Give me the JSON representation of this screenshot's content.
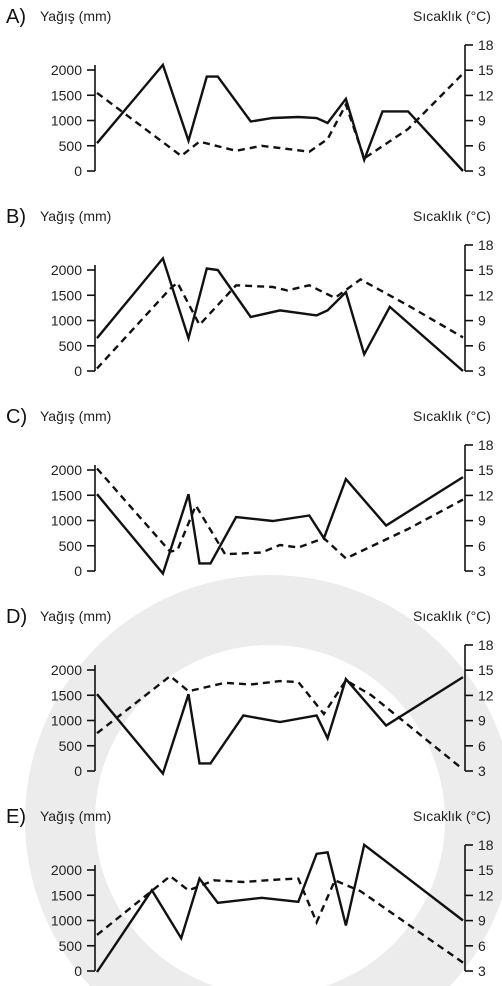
{
  "chart_data": [
    {
      "type": "line",
      "panel": "A)",
      "ylabel": "Yağış (mm)",
      "y2label": "Sıcaklık (",
      "y2unit": "°C)",
      "ylim": [
        0,
        2000
      ],
      "yticks": [
        0,
        500,
        1000,
        1500,
        2000
      ],
      "y2lim": [
        3,
        18
      ],
      "y2ticks": [
        3,
        6,
        9,
        12,
        15,
        18
      ],
      "series": [
        {
          "axis": "left",
          "style": "solid",
          "x": [
            0,
            0.18,
            0.25,
            0.3,
            0.33,
            0.42,
            0.48,
            0.55,
            0.6,
            0.63,
            0.68,
            0.73,
            0.78,
            0.85,
            1
          ],
          "values": [
            550,
            2100,
            600,
            1870,
            1870,
            980,
            1050,
            1070,
            1050,
            950,
            1430,
            220,
            1180,
            1180,
            0
          ]
        },
        {
          "axis": "right",
          "style": "dashed",
          "x": [
            0,
            0.23,
            0.28,
            0.38,
            0.45,
            0.58,
            0.63,
            0.68,
            0.73,
            0.85,
            1
          ],
          "values": [
            12.3,
            4.8,
            6.5,
            5.4,
            6.0,
            5.3,
            6.8,
            10.9,
            4.5,
            8.0,
            14.6
          ]
        }
      ]
    },
    {
      "type": "line",
      "panel": "B)",
      "ylabel": "Yağış (mm)",
      "y2label": "Sıcaklık (",
      "y2unit": "°C)",
      "ylim": [
        0,
        2000
      ],
      "yticks": [
        0,
        500,
        1000,
        1500,
        2000
      ],
      "y2lim": [
        3,
        18
      ],
      "y2ticks": [
        3,
        6,
        9,
        12,
        15,
        18
      ],
      "series": [
        {
          "axis": "left",
          "style": "solid",
          "x": [
            0,
            0.18,
            0.25,
            0.3,
            0.33,
            0.42,
            0.5,
            0.6,
            0.63,
            0.68,
            0.73,
            0.8,
            1
          ],
          "values": [
            650,
            2230,
            650,
            2030,
            2000,
            1070,
            1200,
            1100,
            1200,
            1560,
            330,
            1270,
            0
          ]
        },
        {
          "axis": "right",
          "style": "dashed",
          "x": [
            0,
            0.2,
            0.22,
            0.28,
            0.38,
            0.48,
            0.52,
            0.58,
            0.65,
            0.72,
            0.85,
            1
          ],
          "values": [
            3.3,
            12.8,
            13.5,
            8.5,
            13.2,
            13.0,
            12.6,
            13.2,
            11.7,
            13.9,
            10.8,
            7.0
          ]
        }
      ]
    },
    {
      "type": "line",
      "panel": "C)",
      "ylabel": "Yağış (mm)",
      "y2label": "Sıcaklık (",
      "y2unit": "°C)",
      "ylim": [
        0,
        2000
      ],
      "yticks": [
        0,
        500,
        1000,
        1500,
        2000
      ],
      "y2lim": [
        3,
        18
      ],
      "y2ticks": [
        3,
        6,
        9,
        12,
        15,
        18
      ],
      "series": [
        {
          "axis": "left",
          "style": "solid",
          "x": [
            0,
            0.18,
            0.25,
            0.28,
            0.31,
            0.38,
            0.48,
            0.58,
            0.62,
            0.68,
            0.79,
            1
          ],
          "values": [
            1520,
            -50,
            1520,
            150,
            150,
            1070,
            990,
            1100,
            650,
            1820,
            900,
            1860
          ]
        },
        {
          "axis": "right",
          "style": "dashed",
          "x": [
            0,
            0.2,
            0.22,
            0.27,
            0.35,
            0.45,
            0.5,
            0.55,
            0.62,
            0.68,
            0.85,
            1
          ],
          "values": [
            15.2,
            5.3,
            5.5,
            10.8,
            5.0,
            5.2,
            6.1,
            5.8,
            6.9,
            4.5,
            8.0,
            11.5
          ]
        }
      ]
    },
    {
      "type": "line",
      "panel": "D)",
      "ylabel": "Yağış (mm)",
      "y2label": "Sıcaklık (",
      "y2unit": "°C)",
      "ylim": [
        0,
        2000
      ],
      "yticks": [
        0,
        500,
        1000,
        1500,
        2000
      ],
      "y2lim": [
        3,
        18
      ],
      "y2ticks": [
        3,
        6,
        9,
        12,
        15,
        18
      ],
      "series": [
        {
          "axis": "left",
          "style": "solid",
          "x": [
            0,
            0.18,
            0.25,
            0.28,
            0.31,
            0.4,
            0.5,
            0.6,
            0.63,
            0.68,
            0.79,
            1
          ],
          "values": [
            1520,
            -50,
            1520,
            150,
            150,
            1100,
            970,
            1100,
            650,
            1820,
            900,
            1860
          ]
        },
        {
          "axis": "right",
          "style": "dashed",
          "x": [
            0,
            0.2,
            0.25,
            0.35,
            0.42,
            0.5,
            0.55,
            0.62,
            0.68,
            0.75,
            1
          ],
          "values": [
            7.5,
            14.3,
            12.5,
            13.5,
            13.3,
            13.7,
            13.6,
            9.8,
            13.8,
            12.0,
            3.2
          ]
        }
      ]
    },
    {
      "type": "line",
      "panel": "E)",
      "ylabel": "Yağış (mm)",
      "y2label": "Sıcaklık (",
      "y2unit": "°C)",
      "ylim": [
        0,
        2000
      ],
      "yticks": [
        0,
        500,
        1000,
        1500,
        2000
      ],
      "y2lim": [
        3,
        18
      ],
      "y2ticks": [
        3,
        6,
        9,
        12,
        15,
        18
      ],
      "series": [
        {
          "axis": "left",
          "style": "solid",
          "x": [
            0,
            0.15,
            0.23,
            0.28,
            0.33,
            0.45,
            0.55,
            0.6,
            0.63,
            0.68,
            0.73,
            1
          ],
          "values": [
            -20,
            1600,
            650,
            1830,
            1350,
            1450,
            1370,
            2320,
            2350,
            900,
            2500,
            1000
          ]
        },
        {
          "axis": "right",
          "style": "dashed",
          "x": [
            0,
            0.2,
            0.25,
            0.32,
            0.4,
            0.5,
            0.55,
            0.6,
            0.65,
            0.72,
            1
          ],
          "values": [
            7.3,
            14.3,
            12.6,
            13.8,
            13.6,
            13.9,
            14.0,
            8.8,
            13.8,
            12.5,
            4.0
          ]
        }
      ]
    }
  ]
}
